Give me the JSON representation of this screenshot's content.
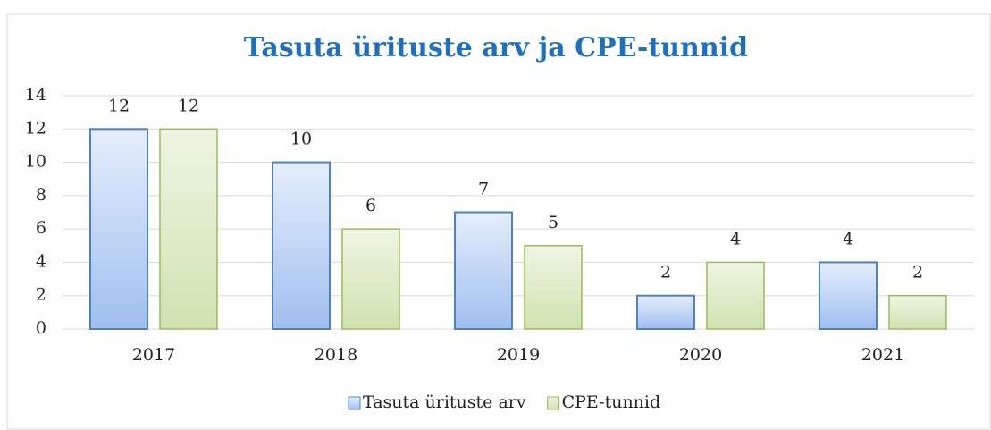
{
  "chart_data": {
    "type": "bar",
    "title": "Tasuta ürituste arv ja CPE-tunnid",
    "categories": [
      "2017",
      "2018",
      "2019",
      "2020",
      "2021"
    ],
    "series": [
      {
        "name": "Tasuta ürituste arv",
        "color": "#4f81bd",
        "values": [
          12,
          10,
          7,
          2,
          4
        ]
      },
      {
        "name": "CPE-tunnid",
        "color": "#9bbb59",
        "values": [
          12,
          6,
          5,
          4,
          2
        ]
      }
    ],
    "ylim": [
      0,
      14
    ],
    "yticks": [
      0,
      2,
      4,
      6,
      8,
      10,
      12,
      14
    ],
    "grid": true,
    "legend": "bottom"
  }
}
